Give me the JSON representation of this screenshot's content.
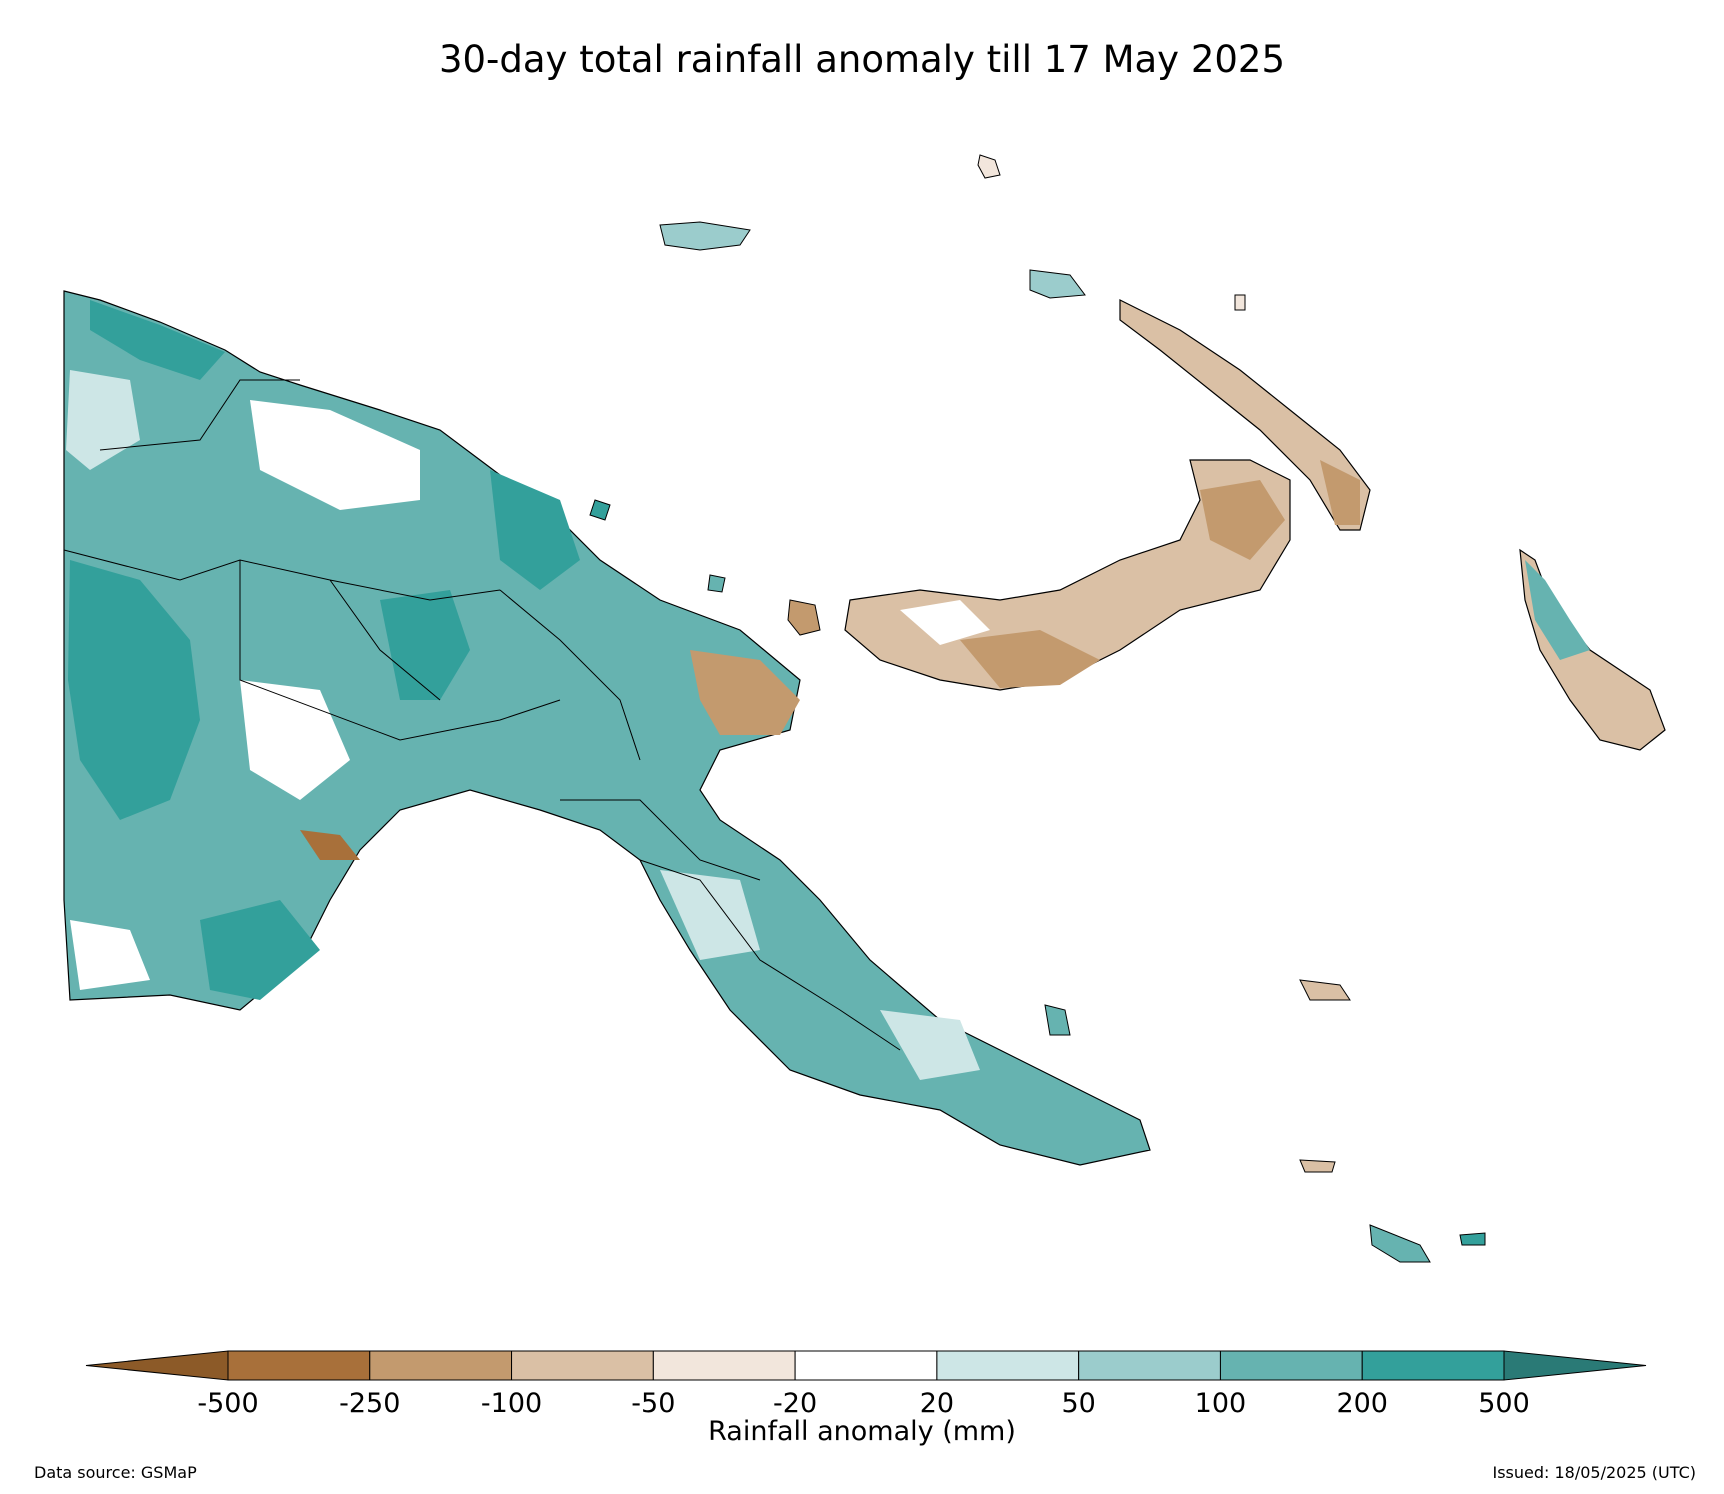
{
  "title": "30-day total rainfall anomaly till 17 May 2025",
  "colorbar": {
    "label": "Rainfall anomaly (mm)",
    "ticks": [
      "-500",
      "-250",
      "-100",
      "-50",
      "-20",
      "20",
      "50",
      "100",
      "200",
      "500"
    ],
    "colors": [
      "#a8703a",
      "#c39a6e",
      "#dac0a5",
      "#f2e6dc",
      "#ffffff",
      "#cde6e6",
      "#9bcccc",
      "#66b3b0",
      "#33a09b"
    ],
    "under_color": "#8c5a28",
    "over_color": "#2a7a76"
  },
  "footer": {
    "source": "Data source: GSMaP",
    "issued": "Issued: 18/05/2025 (UTC)"
  }
}
